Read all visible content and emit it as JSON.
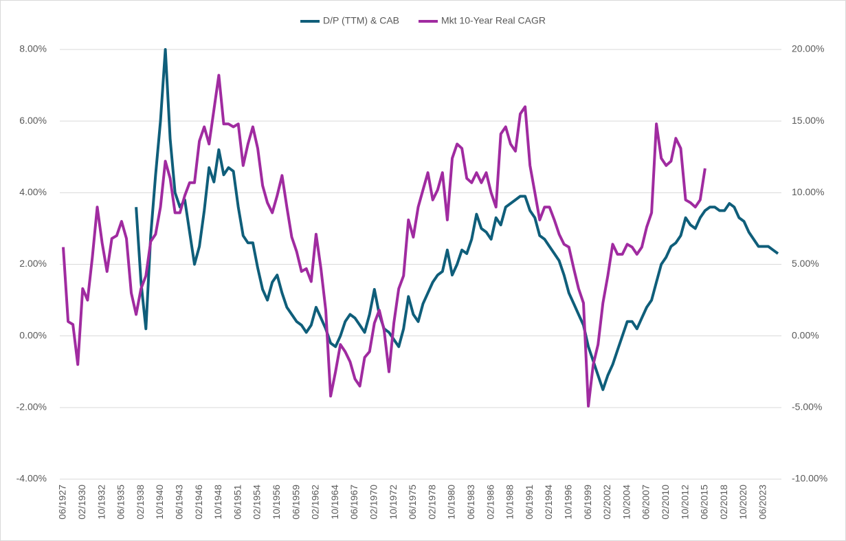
{
  "chart_data": {
    "type": "line",
    "categories": [
      "06/1927",
      null,
      null,
      null,
      "02/1930",
      null,
      null,
      null,
      "10/1932",
      null,
      null,
      null,
      "06/1935",
      null,
      null,
      null,
      "02/1938",
      null,
      null,
      null,
      "10/1940",
      null,
      null,
      null,
      "06/1943",
      null,
      null,
      null,
      "02/1946",
      null,
      null,
      null,
      "10/1948",
      null,
      null,
      null,
      "06/1951",
      null,
      null,
      null,
      "02/1954",
      null,
      null,
      null,
      "10/1956",
      null,
      null,
      null,
      "06/1959",
      null,
      null,
      null,
      "02/1962",
      null,
      null,
      null,
      "10/1964",
      null,
      null,
      null,
      "06/1967",
      null,
      null,
      null,
      "02/1970",
      null,
      null,
      null,
      "10/1972",
      null,
      null,
      null,
      "06/1975",
      null,
      null,
      null,
      "02/1978",
      null,
      null,
      null,
      "10/1980",
      null,
      null,
      null,
      "06/1983",
      null,
      null,
      null,
      "02/1986",
      null,
      null,
      null,
      "10/1988",
      null,
      null,
      null,
      "06/1991",
      null,
      null,
      null,
      "02/1994",
      null,
      null,
      null,
      "10/1996",
      null,
      null,
      null,
      "06/1999",
      null,
      null,
      null,
      "02/2002",
      null,
      null,
      null,
      "10/2004",
      null,
      null,
      null,
      "06/2007",
      null,
      null,
      null,
      "02/2010",
      null,
      null,
      null,
      "10/2012",
      null,
      null,
      null,
      "06/2015",
      null,
      null,
      null,
      "02/2018",
      null,
      null,
      null,
      "10/2020",
      null,
      null,
      null,
      "06/2023",
      null,
      null,
      null
    ],
    "series": [
      {
        "name": "D/P (TTM) & CAB",
        "color": "#0f5e7a",
        "values": [
          null,
          null,
          null,
          null,
          null,
          null,
          null,
          null,
          null,
          null,
          null,
          null,
          null,
          null,
          null,
          3.6,
          1.5,
          0.2,
          2.8,
          4.5,
          6.0,
          8.0,
          5.5,
          4.0,
          3.6,
          3.8,
          2.9,
          2.0,
          2.5,
          3.5,
          4.7,
          4.3,
          5.2,
          4.5,
          4.7,
          4.6,
          3.6,
          2.8,
          2.6,
          2.6,
          1.9,
          1.3,
          1.0,
          1.5,
          1.7,
          1.2,
          0.8,
          0.6,
          0.4,
          0.3,
          0.1,
          0.3,
          0.8,
          0.5,
          0.2,
          -0.2,
          -0.3,
          0.0,
          0.4,
          0.6,
          0.5,
          0.3,
          0.1,
          0.6,
          1.3,
          0.6,
          0.2,
          0.1,
          -0.1,
          -0.3,
          0.2,
          1.1,
          0.6,
          0.4,
          0.9,
          1.2,
          1.5,
          1.7,
          1.8,
          2.4,
          1.7,
          2.0,
          2.4,
          2.3,
          2.7,
          3.4,
          3.0,
          2.9,
          2.7,
          3.3,
          3.1,
          3.6,
          3.7,
          3.8,
          3.9,
          3.9,
          3.5,
          3.3,
          2.8,
          2.7,
          2.5,
          2.3,
          2.1,
          1.7,
          1.2,
          0.9,
          0.6,
          0.3,
          -0.3,
          -0.7,
          -1.1,
          -1.5,
          -1.1,
          -0.8,
          -0.4,
          0.0,
          0.4,
          0.4,
          0.2,
          0.5,
          0.8,
          1.0,
          1.5,
          2.0,
          2.2,
          2.5,
          2.6,
          2.8,
          3.3,
          3.1,
          3.0,
          3.3,
          3.5,
          3.6,
          3.6,
          3.5,
          3.5,
          3.7,
          3.6,
          3.3,
          3.2,
          2.9,
          2.7,
          2.5,
          2.5,
          2.5,
          2.4,
          2.3
        ]
      },
      {
        "name": "Mkt 10-Year Real CAGR",
        "color": "#a02ba0",
        "axis": "y2",
        "values": [
          6.2,
          1.0,
          0.8,
          -2.0,
          3.3,
          2.5,
          5.5,
          9.0,
          6.5,
          4.5,
          6.8,
          7.0,
          8.0,
          6.8,
          3.0,
          1.5,
          3.3,
          4.2,
          6.6,
          7.1,
          9.0,
          12.2,
          11.0,
          8.6,
          8.6,
          9.8,
          10.7,
          10.7,
          13.6,
          14.6,
          13.4,
          15.8,
          18.2,
          14.8,
          14.8,
          14.6,
          14.8,
          11.9,
          13.4,
          14.6,
          13.1,
          10.5,
          9.3,
          8.6,
          9.8,
          11.2,
          9.0,
          6.9,
          5.9,
          4.5,
          4.7,
          3.8,
          7.1,
          4.7,
          1.8,
          -4.2,
          -2.5,
          -0.6,
          -1.1,
          -1.8,
          -3.0,
          -3.5,
          -1.5,
          -1.1,
          0.9,
          1.8,
          0.4,
          -2.5,
          0.9,
          3.3,
          4.2,
          8.1,
          6.9,
          9.0,
          10.2,
          11.4,
          9.5,
          10.2,
          11.4,
          8.1,
          12.4,
          13.4,
          13.1,
          11.0,
          10.7,
          11.4,
          10.7,
          11.4,
          10.0,
          9.0,
          14.1,
          14.6,
          13.4,
          12.9,
          15.5,
          16.0,
          11.9,
          10.0,
          8.1,
          9.0,
          9.0,
          8.1,
          7.1,
          6.4,
          6.2,
          4.7,
          3.3,
          2.3,
          -4.9,
          -2.0,
          -0.6,
          2.3,
          4.2,
          6.4,
          5.7,
          5.7,
          6.4,
          6.2,
          5.7,
          6.2,
          7.6,
          8.6,
          14.8,
          12.4,
          11.9,
          12.2,
          13.8,
          13.1,
          9.5,
          9.3,
          9.0,
          9.5,
          11.7,
          null,
          null,
          null,
          null,
          null,
          null,
          null,
          null,
          null,
          null,
          null,
          null,
          null,
          null,
          null
        ]
      }
    ],
    "ylim": [
      -4,
      8
    ],
    "yticks": [
      {
        "value": -4,
        "label": "-4.00%"
      },
      {
        "value": -2,
        "label": "-2.00%"
      },
      {
        "value": 0,
        "label": "0.00%"
      },
      {
        "value": 2,
        "label": "2.00%"
      },
      {
        "value": 4,
        "label": "4.00%"
      },
      {
        "value": 6,
        "label": "6.00%"
      },
      {
        "value": 8,
        "label": "8.00%"
      }
    ],
    "y2lim": [
      -10,
      20
    ],
    "y2ticks": [
      {
        "value": -10,
        "label": "-10.00%"
      },
      {
        "value": -5,
        "label": "-5.00%"
      },
      {
        "value": 0,
        "label": "0.00%"
      },
      {
        "value": 5,
        "label": "5.00%"
      },
      {
        "value": 10,
        "label": "10.00%"
      },
      {
        "value": 15,
        "label": "15.00%"
      },
      {
        "value": 20,
        "label": "20.00%"
      }
    ],
    "grid": true,
    "legend": "top"
  }
}
